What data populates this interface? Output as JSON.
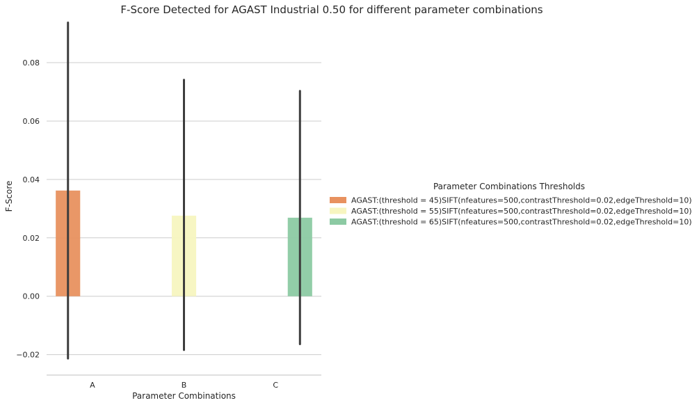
{
  "chart_data": {
    "type": "bar",
    "title": "F-Score Detected for AGAST Industrial 0.50 for different parameter combinations",
    "xlabel": "Parameter Combinations",
    "ylabel": "F-Score",
    "categories": [
      "A",
      "B",
      "C"
    ],
    "ylim": [
      -0.027,
      0.0955
    ],
    "yticks": [
      -0.02,
      0.0,
      0.02,
      0.04,
      0.06,
      0.08
    ],
    "ytick_labels": [
      "−0.02",
      "0.00",
      "0.02",
      "0.04",
      "0.06",
      "0.08"
    ],
    "grid": true,
    "legend": {
      "title": "Parameter Combinations Thresholds",
      "placement": "right"
    },
    "series": [
      {
        "name": "AGAST:(threshold = 45)SIFT(nfeatures=500,contrastThreshold=0.02,edgeThreshold=10)",
        "color": "#e8915f",
        "category": "A",
        "value": 0.0362,
        "error_low": -0.0213,
        "error_high": 0.0937
      },
      {
        "name": "AGAST:(threshold = 55)SIFT(nfeatures=500,contrastThreshold=0.02,edgeThreshold=10)",
        "color": "#f7f5c0",
        "category": "B",
        "value": 0.0276,
        "error_low": -0.0184,
        "error_high": 0.0741
      },
      {
        "name": "AGAST:(threshold = 65)SIFT(nfeatures=500,contrastThreshold=0.02,edgeThreshold=10)",
        "color": "#8ccaa3",
        "category": "C",
        "value": 0.0269,
        "error_low": -0.0164,
        "error_high": 0.0703
      }
    ]
  }
}
